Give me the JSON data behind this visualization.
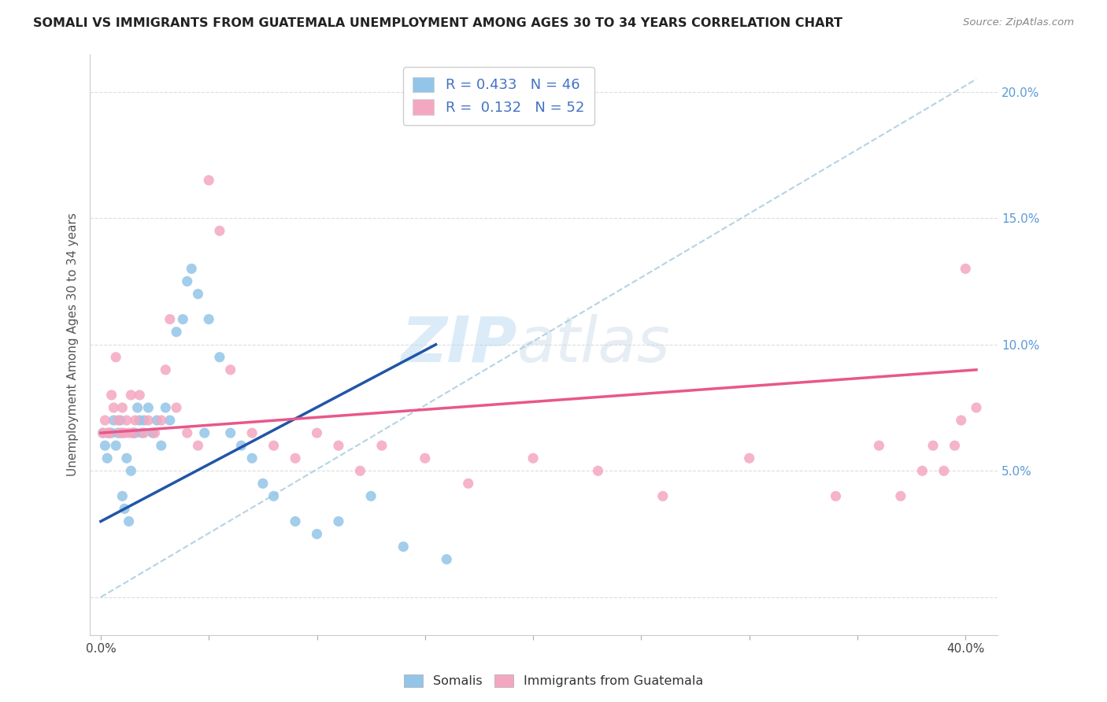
{
  "title": "SOMALI VS IMMIGRANTS FROM GUATEMALA UNEMPLOYMENT AMONG AGES 30 TO 34 YEARS CORRELATION CHART",
  "source": "Source: ZipAtlas.com",
  "ylabel": "Unemployment Among Ages 30 to 34 years",
  "y_tick_labels": [
    "",
    "5.0%",
    "10.0%",
    "15.0%",
    "20.0%"
  ],
  "y_tick_values": [
    0.0,
    0.05,
    0.1,
    0.15,
    0.2
  ],
  "x_tick_values": [
    0.0,
    0.05,
    0.1,
    0.15,
    0.2,
    0.25,
    0.3,
    0.35,
    0.4
  ],
  "xlim": [
    -0.005,
    0.415
  ],
  "ylim": [
    -0.015,
    0.215
  ],
  "legend_somali_R": "0.433",
  "legend_somali_N": "46",
  "legend_guatemala_R": "0.132",
  "legend_guatemala_N": "52",
  "legend_label_somali": "Somalis",
  "legend_label_guatemala": "Immigrants from Guatemala",
  "color_somali": "#92C5E8",
  "color_guatemala": "#F4A7C0",
  "color_somali_line": "#2155A8",
  "color_guatemala_line": "#E8578A",
  "color_dashed_line": "#A8CCE0",
  "background_color": "#FFFFFF",
  "watermark_text": "ZIPatlas",
  "somali_x": [
    0.001,
    0.002,
    0.003,
    0.004,
    0.005,
    0.006,
    0.007,
    0.008,
    0.009,
    0.01,
    0.01,
    0.011,
    0.012,
    0.013,
    0.014,
    0.015,
    0.016,
    0.017,
    0.018,
    0.019,
    0.02,
    0.022,
    0.024,
    0.026,
    0.028,
    0.03,
    0.032,
    0.035,
    0.038,
    0.04,
    0.042,
    0.045,
    0.048,
    0.05,
    0.055,
    0.06,
    0.065,
    0.07,
    0.075,
    0.08,
    0.09,
    0.1,
    0.11,
    0.125,
    0.14,
    0.16
  ],
  "somali_y": [
    0.065,
    0.06,
    0.055,
    0.065,
    0.065,
    0.07,
    0.06,
    0.065,
    0.07,
    0.065,
    0.04,
    0.035,
    0.055,
    0.03,
    0.05,
    0.065,
    0.065,
    0.075,
    0.07,
    0.065,
    0.07,
    0.075,
    0.065,
    0.07,
    0.06,
    0.075,
    0.07,
    0.105,
    0.11,
    0.125,
    0.13,
    0.12,
    0.065,
    0.11,
    0.095,
    0.065,
    0.06,
    0.055,
    0.045,
    0.04,
    0.03,
    0.025,
    0.03,
    0.04,
    0.02,
    0.015
  ],
  "guatemala_x": [
    0.001,
    0.002,
    0.003,
    0.004,
    0.005,
    0.006,
    0.007,
    0.008,
    0.009,
    0.01,
    0.011,
    0.012,
    0.013,
    0.014,
    0.015,
    0.016,
    0.018,
    0.02,
    0.022,
    0.025,
    0.028,
    0.03,
    0.032,
    0.035,
    0.04,
    0.045,
    0.05,
    0.055,
    0.06,
    0.07,
    0.08,
    0.09,
    0.1,
    0.11,
    0.12,
    0.13,
    0.15,
    0.17,
    0.2,
    0.23,
    0.26,
    0.3,
    0.34,
    0.36,
    0.37,
    0.38,
    0.385,
    0.39,
    0.395,
    0.398,
    0.4,
    0.405
  ],
  "guatemala_y": [
    0.065,
    0.07,
    0.065,
    0.065,
    0.08,
    0.075,
    0.095,
    0.07,
    0.065,
    0.075,
    0.065,
    0.07,
    0.065,
    0.08,
    0.065,
    0.07,
    0.08,
    0.065,
    0.07,
    0.065,
    0.07,
    0.09,
    0.11,
    0.075,
    0.065,
    0.06,
    0.165,
    0.145,
    0.09,
    0.065,
    0.06,
    0.055,
    0.065,
    0.06,
    0.05,
    0.06,
    0.055,
    0.045,
    0.055,
    0.05,
    0.04,
    0.055,
    0.04,
    0.06,
    0.04,
    0.05,
    0.06,
    0.05,
    0.06,
    0.07,
    0.13,
    0.075
  ],
  "somali_line_x": [
    0.0,
    0.155
  ],
  "somali_line_y": [
    0.03,
    0.1
  ],
  "guatemala_line_x": [
    0.0,
    0.405
  ],
  "guatemala_line_y": [
    0.065,
    0.09
  ],
  "dashed_line_x": [
    0.0,
    0.405
  ],
  "dashed_line_y": [
    0.0,
    0.205
  ]
}
